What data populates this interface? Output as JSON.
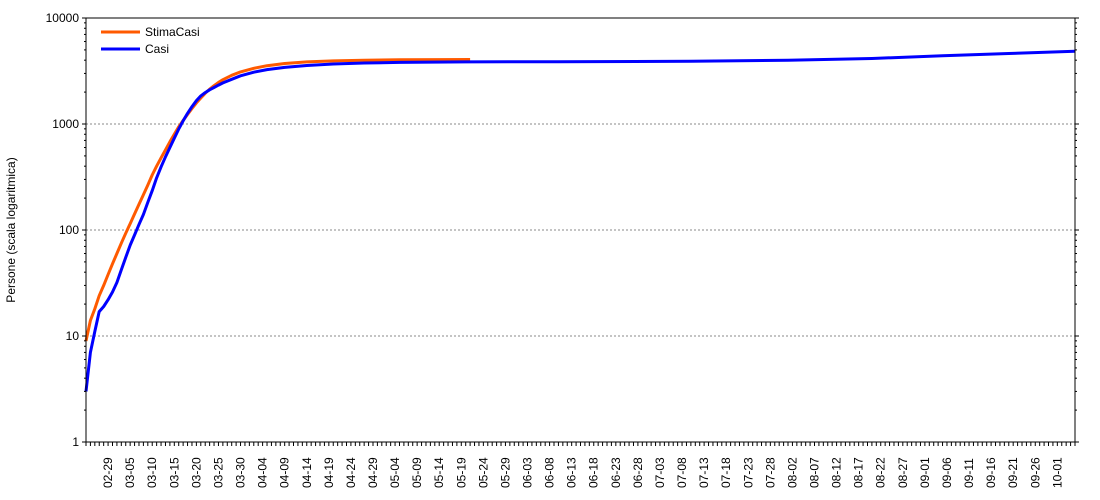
{
  "chart_data": {
    "type": "line",
    "title": "",
    "xlabel": "",
    "ylabel": "Persone (scala logaritmica)",
    "yscale": "log",
    "ylim": [
      1,
      10000
    ],
    "yticks": [
      {
        "value": 1,
        "label": "1"
      },
      {
        "value": 10,
        "label": "10"
      },
      {
        "value": 100,
        "label": "100"
      },
      {
        "value": 1000,
        "label": "1000"
      },
      {
        "value": 10000,
        "label": "10000"
      }
    ],
    "xlim": [
      "2020-02-24",
      "2020-10-05"
    ],
    "xtick_labels": [
      "02-29",
      "03-05",
      "03-10",
      "03-15",
      "03-20",
      "03-25",
      "03-30",
      "04-04",
      "04-09",
      "04-14",
      "04-19",
      "04-24",
      "04-29",
      "05-04",
      "05-09",
      "05-14",
      "05-19",
      "05-24",
      "05-29",
      "06-03",
      "06-08",
      "06-13",
      "06-18",
      "06-23",
      "06-28",
      "07-03",
      "07-08",
      "07-13",
      "07-18",
      "07-23",
      "07-28",
      "08-02",
      "08-07",
      "08-12",
      "08-17",
      "08-22",
      "08-27",
      "09-01",
      "09-06",
      "09-11",
      "09-16",
      "09-21",
      "09-26",
      "10-01"
    ],
    "grid": "horizontal dotted",
    "legend_position": "top-left",
    "series": [
      {
        "name": "StimaCasi",
        "color": "#ff5a00",
        "points": [
          [
            "2020-02-24",
            9
          ],
          [
            "2020-02-25",
            14
          ],
          [
            "2020-02-26",
            18
          ],
          [
            "2020-02-27",
            24
          ],
          [
            "2020-02-28",
            30
          ],
          [
            "2020-02-29",
            38
          ],
          [
            "2020-03-01",
            48
          ],
          [
            "2020-03-02",
            60
          ],
          [
            "2020-03-03",
            75
          ],
          [
            "2020-03-04",
            93
          ],
          [
            "2020-03-05",
            115
          ],
          [
            "2020-03-06",
            142
          ],
          [
            "2020-03-07",
            175
          ],
          [
            "2020-03-08",
            215
          ],
          [
            "2020-03-09",
            265
          ],
          [
            "2020-03-10",
            330
          ],
          [
            "2020-03-11",
            400
          ],
          [
            "2020-03-12",
            480
          ],
          [
            "2020-03-13",
            570
          ],
          [
            "2020-03-14",
            680
          ],
          [
            "2020-03-15",
            800
          ],
          [
            "2020-03-16",
            940
          ],
          [
            "2020-03-17",
            1080
          ],
          [
            "2020-03-18",
            1230
          ],
          [
            "2020-03-19",
            1400
          ],
          [
            "2020-03-20",
            1580
          ],
          [
            "2020-03-21",
            1760
          ],
          [
            "2020-03-22",
            1950
          ],
          [
            "2020-03-23",
            2130
          ],
          [
            "2020-03-24",
            2300
          ],
          [
            "2020-03-25",
            2470
          ],
          [
            "2020-03-26",
            2620
          ],
          [
            "2020-03-28",
            2880
          ],
          [
            "2020-03-30",
            3100
          ],
          [
            "2020-04-02",
            3350
          ],
          [
            "2020-04-05",
            3550
          ],
          [
            "2020-04-09",
            3720
          ],
          [
            "2020-04-14",
            3850
          ],
          [
            "2020-04-20",
            3940
          ],
          [
            "2020-04-27",
            4000
          ],
          [
            "2020-05-05",
            4030
          ],
          [
            "2020-05-14",
            4050
          ],
          [
            "2020-05-21",
            4060
          ]
        ]
      },
      {
        "name": "Casi",
        "color": "#0000ff",
        "points": [
          [
            "2020-02-24",
            3
          ],
          [
            "2020-02-25",
            7
          ],
          [
            "2020-02-26",
            11
          ],
          [
            "2020-02-27",
            17
          ],
          [
            "2020-02-28",
            19
          ],
          [
            "2020-02-29",
            22
          ],
          [
            "2020-03-01",
            26
          ],
          [
            "2020-03-02",
            32
          ],
          [
            "2020-03-03",
            42
          ],
          [
            "2020-03-04",
            55
          ],
          [
            "2020-03-05",
            72
          ],
          [
            "2020-03-06",
            90
          ],
          [
            "2020-03-07",
            113
          ],
          [
            "2020-03-08",
            140
          ],
          [
            "2020-03-09",
            182
          ],
          [
            "2020-03-10",
            235
          ],
          [
            "2020-03-11",
            310
          ],
          [
            "2020-03-12",
            395
          ],
          [
            "2020-03-13",
            490
          ],
          [
            "2020-03-14",
            600
          ],
          [
            "2020-03-15",
            735
          ],
          [
            "2020-03-16",
            895
          ],
          [
            "2020-03-17",
            1070
          ],
          [
            "2020-03-18",
            1260
          ],
          [
            "2020-03-19",
            1460
          ],
          [
            "2020-03-20",
            1660
          ],
          [
            "2020-03-21",
            1840
          ],
          [
            "2020-03-22",
            1980
          ],
          [
            "2020-03-23",
            2100
          ],
          [
            "2020-03-24",
            2210
          ],
          [
            "2020-03-25",
            2330
          ],
          [
            "2020-03-26",
            2440
          ],
          [
            "2020-03-28",
            2640
          ],
          [
            "2020-03-30",
            2850
          ],
          [
            "2020-04-02",
            3080
          ],
          [
            "2020-04-05",
            3260
          ],
          [
            "2020-04-09",
            3420
          ],
          [
            "2020-04-14",
            3560
          ],
          [
            "2020-04-20",
            3680
          ],
          [
            "2020-04-27",
            3760
          ],
          [
            "2020-05-05",
            3810
          ],
          [
            "2020-05-20",
            3850
          ],
          [
            "2020-06-10",
            3870
          ],
          [
            "2020-07-10",
            3900
          ],
          [
            "2020-08-01",
            4000
          ],
          [
            "2020-08-20",
            4150
          ],
          [
            "2020-09-05",
            4400
          ],
          [
            "2020-09-20",
            4620
          ],
          [
            "2020-10-05",
            4850
          ]
        ]
      }
    ]
  }
}
